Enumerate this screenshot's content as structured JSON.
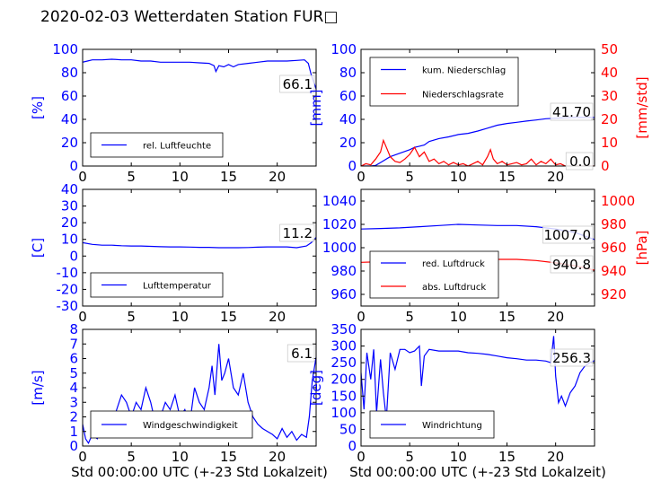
{
  "page_title": "2020-02-03 Wetterdaten Station FUR□",
  "chart_data": [
    {
      "id": "humidity",
      "type": "line",
      "xlabel": "",
      "ylabel": "[%]",
      "ylabel_color": "#0000ff",
      "xlim": [
        0,
        24
      ],
      "ylim": [
        0,
        100
      ],
      "xticks": [
        0,
        5,
        10,
        15,
        20
      ],
      "yticks": [
        0,
        20,
        40,
        60,
        80,
        100
      ],
      "ytick_color": "#0000ff",
      "legend_loc": "lower-left",
      "current_value": "66.1",
      "series": [
        {
          "name": "rel. Luftfeuchte",
          "color": "#0000ff",
          "x": [
            0,
            0.5,
            1,
            2,
            3,
            4,
            5,
            6,
            7,
            8,
            9,
            10,
            11,
            12,
            13,
            13.5,
            13.7,
            14,
            14.5,
            15,
            15.5,
            16,
            17,
            18,
            19,
            20,
            21,
            22,
            22.8,
            23.2,
            23.5,
            24
          ],
          "y": [
            89,
            90,
            91,
            91,
            91.5,
            91,
            91,
            90,
            90,
            89,
            89,
            89,
            89,
            88.5,
            88,
            86,
            81,
            86,
            85,
            87,
            85,
            87,
            88,
            89,
            90,
            90,
            90,
            90.5,
            91,
            88,
            78,
            66.1
          ]
        }
      ]
    },
    {
      "id": "precipitation",
      "type": "line",
      "xlabel": "",
      "ylabel": "[mm]",
      "ylabel_color": "#0000ff",
      "ylabel_right": "[mm/std]",
      "ylabel_right_color": "#ff0000",
      "xlim": [
        0,
        24
      ],
      "ylim": [
        0,
        100
      ],
      "ylim_right": [
        0,
        50
      ],
      "xticks": [
        0,
        5,
        10,
        15,
        20
      ],
      "yticks": [
        0,
        20,
        40,
        60,
        80,
        100
      ],
      "yticks_right": [
        0,
        10,
        20,
        30,
        40,
        50
      ],
      "ytick_color": "#0000ff",
      "ytick_right_color": "#ff0000",
      "legend_loc": "top-left",
      "current_value": "41.70",
      "current_value_right": "0.0",
      "series": [
        {
          "name": "kum. Niederschlag",
          "color": "#0000ff",
          "axis": "left",
          "x": [
            0,
            1,
            1.5,
            2,
            3,
            4,
            5,
            5.5,
            6,
            6.5,
            7,
            8,
            9,
            10,
            11,
            12,
            13,
            14,
            15,
            16,
            17,
            18,
            19,
            20,
            21,
            22,
            23,
            24
          ],
          "y": [
            0,
            0,
            0.5,
            3,
            8,
            11,
            14,
            16,
            17,
            18,
            21,
            23.5,
            25,
            27,
            28,
            30,
            32.5,
            35,
            36.5,
            37.5,
            38.5,
            39.5,
            40.5,
            41,
            41.5,
            41.7,
            41.7,
            41.7
          ]
        },
        {
          "name": "Niederschlagsrate",
          "color": "#ff0000",
          "axis": "right",
          "x": [
            0,
            0.5,
            1,
            1.5,
            2,
            2.3,
            2.6,
            3,
            3.5,
            4,
            4.5,
            5,
            5.5,
            6,
            6.5,
            7,
            7.5,
            8,
            8.5,
            9,
            9.5,
            10,
            10.5,
            11,
            11.5,
            12,
            12.5,
            13,
            13.3,
            13.6,
            14,
            14.5,
            15,
            15.5,
            16,
            16.5,
            17,
            17.5,
            18,
            18.5,
            19,
            19.5,
            20,
            20.5,
            21,
            22,
            23,
            24
          ],
          "y": [
            0,
            1,
            0.5,
            3,
            6,
            11,
            8,
            4,
            2,
            1.5,
            3,
            5,
            8,
            4,
            6,
            2,
            3,
            1,
            2,
            0.5,
            1.5,
            0.5,
            1,
            0,
            1,
            2,
            0.5,
            4,
            7,
            3,
            1,
            2,
            0.5,
            1,
            1.5,
            0.5,
            1,
            3,
            0.5,
            2,
            1,
            3,
            0.5,
            1,
            0,
            0,
            0,
            0
          ]
        }
      ]
    },
    {
      "id": "temperature",
      "type": "line",
      "xlabel": "",
      "ylabel": "[C]",
      "ylabel_color": "#0000ff",
      "xlim": [
        0,
        24
      ],
      "ylim": [
        -30,
        40
      ],
      "xticks": [
        0,
        5,
        10,
        15,
        20
      ],
      "yticks": [
        -30,
        -20,
        -10,
        0,
        10,
        20,
        30,
        40
      ],
      "ytick_color": "#0000ff",
      "legend_loc": "lower-left",
      "current_value": "11.2",
      "series": [
        {
          "name": "Lufttemperatur",
          "color": "#0000ff",
          "x": [
            0,
            1,
            2,
            3,
            4,
            5,
            6,
            7,
            8,
            9,
            10,
            11,
            12,
            13,
            14,
            15,
            16,
            17,
            18,
            19,
            20,
            21,
            22,
            23,
            23.5,
            24
          ],
          "y": [
            8,
            7,
            6.5,
            6.5,
            6.2,
            6,
            6,
            5.8,
            5.6,
            5.5,
            5.5,
            5.4,
            5.2,
            5.2,
            5,
            5,
            5,
            5.1,
            5.3,
            5.5,
            5.5,
            5.5,
            5,
            6,
            8,
            11.2
          ]
        }
      ]
    },
    {
      "id": "pressure",
      "type": "line",
      "xlabel": "",
      "ylabel": "",
      "ylabel_right": "[hPa]",
      "ylabel_right_color": "#ff0000",
      "xlim": [
        0,
        24
      ],
      "ylim": [
        950,
        1050
      ],
      "ylim_right": [
        910,
        1010
      ],
      "xticks": [
        0,
        5,
        10,
        15,
        20
      ],
      "yticks": [
        960,
        980,
        1000,
        1020,
        1040
      ],
      "yticks_right": [
        920,
        940,
        960,
        980,
        1000
      ],
      "ytick_color": "#0000ff",
      "ytick_right_color": "#ff0000",
      "legend_loc": "lower-left",
      "current_value": "1007.0",
      "current_value_right": "940.8",
      "series": [
        {
          "name": "red. Luftdruck",
          "color": "#0000ff",
          "axis": "left",
          "x": [
            0,
            2,
            4,
            6,
            8,
            10,
            12,
            14,
            16,
            18,
            20,
            22,
            24
          ],
          "y": [
            1016,
            1016.5,
            1017,
            1018,
            1019,
            1020,
            1019.5,
            1019,
            1019,
            1018,
            1016,
            1013,
            1007
          ]
        },
        {
          "name": "abs. Luftdruck",
          "color": "#ff0000",
          "axis": "right",
          "x": [
            0,
            2,
            4,
            6,
            8,
            10,
            12,
            14,
            16,
            18,
            20,
            22,
            24
          ],
          "y": [
            947.5,
            948,
            948.5,
            949.5,
            950,
            950.5,
            950.5,
            950,
            950,
            949,
            947,
            944.5,
            940.8
          ]
        }
      ]
    },
    {
      "id": "windspeed",
      "type": "line",
      "xlabel": "Std 00:00:00 UTC (+-23 Std Lokalzeit)",
      "ylabel": "[m/s]",
      "ylabel_color": "#0000ff",
      "xlim": [
        0,
        24
      ],
      "ylim": [
        0,
        8
      ],
      "xticks": [
        0,
        5,
        10,
        15,
        20
      ],
      "yticks": [
        0,
        1,
        2,
        3,
        4,
        5,
        6,
        7,
        8
      ],
      "ytick_color": "#0000ff",
      "legend_loc": "lower-center",
      "current_value": "6.1",
      "series": [
        {
          "name": "Windgeschwindigkeit",
          "color": "#0000ff",
          "x": [
            0,
            0.3,
            0.6,
            1,
            1.5,
            2,
            2.5,
            3,
            3.5,
            4,
            4.5,
            5,
            5.5,
            6,
            6.5,
            7,
            7.5,
            8,
            8.5,
            9,
            9.5,
            10,
            10.5,
            11,
            11.5,
            12,
            12.5,
            13,
            13.3,
            13.6,
            14,
            14.3,
            14.6,
            15,
            15.5,
            16,
            16.5,
            17,
            17.5,
            18,
            18.5,
            19,
            19.5,
            20,
            20.5,
            21,
            21.5,
            22,
            22.5,
            23,
            23.3,
            23.6,
            24
          ],
          "y": [
            1.5,
            0.5,
            0.2,
            0.8,
            0.5,
            1.2,
            2,
            1.5,
            2.5,
            3.5,
            3,
            2,
            3,
            2.5,
            4,
            3,
            1.5,
            2,
            3,
            2.5,
            3.5,
            2,
            2.5,
            1.5,
            4,
            3,
            2.5,
            4,
            5.5,
            3.5,
            7,
            4.5,
            5,
            6,
            4,
            3.5,
            5,
            3,
            2,
            1.5,
            1.2,
            1,
            0.8,
            0.5,
            1.2,
            0.6,
            1,
            0.4,
            0.8,
            0.6,
            2,
            4.5,
            6.1
          ]
        }
      ]
    },
    {
      "id": "winddirection",
      "type": "line",
      "xlabel": "Std 00:00:00 UTC (+-23 Std Lokalzeit)",
      "ylabel": "[deg]",
      "ylabel_color": "#0000ff",
      "xlim": [
        0,
        24
      ],
      "ylim": [
        0,
        350
      ],
      "xticks": [
        0,
        5,
        10,
        15,
        20
      ],
      "yticks": [
        0,
        50,
        100,
        150,
        200,
        250,
        300,
        350
      ],
      "ytick_color": "#0000ff",
      "legend_loc": "lower-left",
      "current_value": "256.3",
      "series": [
        {
          "name": "Windrichtung",
          "color": "#0000ff",
          "x": [
            0,
            0.3,
            0.6,
            1,
            1.3,
            1.6,
            2,
            2.3,
            2.6,
            3,
            3.5,
            4,
            4.5,
            5,
            5.5,
            6,
            6.2,
            6.5,
            7,
            8,
            9,
            10,
            11,
            12,
            13,
            14,
            15,
            16,
            17,
            18,
            19,
            19.5,
            19.8,
            20,
            20.3,
            20.6,
            21,
            21.5,
            22,
            22.5,
            23,
            23.5,
            24
          ],
          "y": [
            220,
            110,
            280,
            200,
            290,
            100,
            260,
            160,
            80,
            280,
            230,
            290,
            290,
            280,
            285,
            300,
            180,
            270,
            290,
            285,
            285,
            285,
            280,
            278,
            275,
            270,
            265,
            262,
            258,
            258,
            255,
            250,
            330,
            210,
            130,
            150,
            120,
            160,
            180,
            220,
            240,
            250,
            256.3
          ]
        }
      ]
    }
  ]
}
